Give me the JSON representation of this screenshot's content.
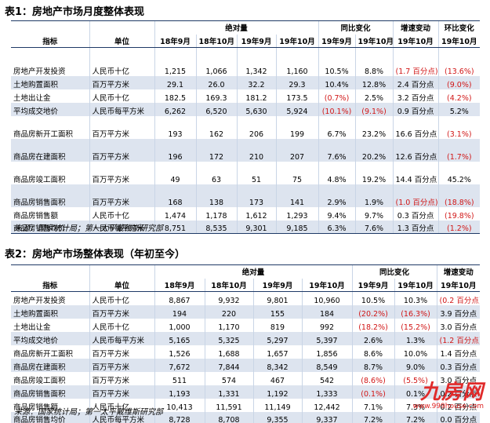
{
  "table1": {
    "title": "表1：房地产市场月度整体表现",
    "header_groups": [
      "绝对量",
      "同比变化",
      "增速变动",
      "环比变化"
    ],
    "header_cols": [
      "指标",
      "单位",
      "18年9月",
      "18年10月",
      "19年9月",
      "19年10月",
      "19年9月",
      "19年10月",
      "19年10月",
      "19年10月"
    ],
    "rows": [
      {
        "indicator": "房地产开发投资",
        "unit": "人民币十亿",
        "v1": "1,215",
        "v2": "1,066",
        "v3": "1,342",
        "v4": "1,160",
        "y1": "10.5%",
        "y2": "8.8%",
        "chg": "(1.7 百分点)",
        "mom": "(13.6%)"
      },
      {
        "indicator": "土地购置面积",
        "unit": "百万平方米",
        "v1": "29.1",
        "v2": "26.0",
        "v3": "32.2",
        "v4": "29.3",
        "y1": "10.4%",
        "y2": "12.8%",
        "chg": "2.4 百分点",
        "mom": "(9.0%)"
      },
      {
        "indicator": "土地出让金",
        "unit": "人民币十亿",
        "v1": "182.5",
        "v2": "169.3",
        "v3": "181.2",
        "v4": "173.5",
        "y1": "(0.7%)",
        "y2": "2.5%",
        "chg": "3.2 百分点",
        "mom": "(4.2%)"
      },
      {
        "indicator": "平均成交地价",
        "unit": "人民币每平方米",
        "v1": "6,262",
        "v2": "6,520",
        "v3": "5,630",
        "v4": "5,924",
        "y1": "(10.1%)",
        "y2": "(9.1%)",
        "chg": "0.9 百分点",
        "mom": "5.2%"
      },
      {
        "indicator": "商品房新开工面积",
        "unit": "百万平方米",
        "v1": "193",
        "v2": "162",
        "v3": "206",
        "v4": "199",
        "y1": "6.7%",
        "y2": "23.2%",
        "chg": "16.6 百分点",
        "mom": "(3.1%)"
      },
      {
        "indicator": "商品房在建面积",
        "unit": "百万平方米",
        "v1": "196",
        "v2": "172",
        "v3": "210",
        "v4": "207",
        "y1": "7.6%",
        "y2": "20.2%",
        "chg": "12.6 百分点",
        "mom": "(1.7%)"
      },
      {
        "indicator": "商品房竣工面积",
        "unit": "百万平方米",
        "v1": "49",
        "v2": "63",
        "v3": "51",
        "v4": "75",
        "y1": "4.8%",
        "y2": "19.2%",
        "chg": "14.4 百分点",
        "mom": "45.2%"
      },
      {
        "indicator": "商品房销售面积",
        "unit": "百万平方米",
        "v1": "168",
        "v2": "138",
        "v3": "173",
        "v4": "141",
        "y1": "2.9%",
        "y2": "1.9%",
        "chg": "(1.0 百分点)",
        "mom": "(18.8%)"
      },
      {
        "indicator": "商品房销售额",
        "unit": "人民币十亿",
        "v1": "1,474",
        "v2": "1,178",
        "v3": "1,612",
        "v4": "1,293",
        "y1": "9.4%",
        "y2": "9.7%",
        "chg": "0.3 百分点",
        "mom": "(19.8%)"
      },
      {
        "indicator": "商品房销售均价",
        "unit": "人民币每平方米",
        "v1": "8,751",
        "v2": "8,535",
        "v3": "9,301",
        "v4": "9,185",
        "y1": "6.3%",
        "y2": "7.6%",
        "chg": "1.3 百分点",
        "mom": "(1.2%)"
      }
    ],
    "source": "来源：国家统计局；第一太平戴维斯研究部"
  },
  "table2": {
    "title": "表2：房地产市场整体表现（年初至今）",
    "header_groups": [
      "绝对量",
      "同比变化",
      "增速变动"
    ],
    "header_cols": [
      "指标",
      "单位",
      "18年9月",
      "18年10月",
      "19年9月",
      "19年10月",
      "19年9月",
      "19年10月",
      "19年10月"
    ],
    "rows": [
      {
        "indicator": "房地产开发投资",
        "unit": "人民币十亿",
        "v1": "8,867",
        "v2": "9,932",
        "v3": "9,801",
        "v4": "10,960",
        "y1": "10.5%",
        "y2": "10.3%",
        "chg": "(0.2 百分点)"
      },
      {
        "indicator": "土地购置面积",
        "unit": "百万平方米",
        "v1": "194",
        "v2": "220",
        "v3": "155",
        "v4": "184",
        "y1": "(20.2%)",
        "y2": "(16.3%)",
        "chg": "3.9 百分点"
      },
      {
        "indicator": "土地出让金",
        "unit": "人民币十亿",
        "v1": "1,000",
        "v2": "1,170",
        "v3": "819",
        "v4": "992",
        "y1": "(18.2%)",
        "y2": "(15.2%)",
        "chg": "3.0 百分点"
      },
      {
        "indicator": "平均成交地价",
        "unit": "人民币每平方米",
        "v1": "5,165",
        "v2": "5,325",
        "v3": "5,297",
        "v4": "5,397",
        "y1": "2.6%",
        "y2": "1.3%",
        "chg": "(1.2 百分点)"
      },
      {
        "indicator": "商品房新开工面积",
        "unit": "百万平方米",
        "v1": "1,526",
        "v2": "1,688",
        "v3": "1,657",
        "v4": "1,856",
        "y1": "8.6%",
        "y2": "10.0%",
        "chg": "1.4 百分点"
      },
      {
        "indicator": "商品房在建面积",
        "unit": "百万平方米",
        "v1": "7,672",
        "v2": "7,844",
        "v3": "8,342",
        "v4": "8,549",
        "y1": "8.7%",
        "y2": "9.0%",
        "chg": "0.3 百分点"
      },
      {
        "indicator": "商品房竣工面积",
        "unit": "百万平方米",
        "v1": "511",
        "v2": "574",
        "v3": "467",
        "v4": "542",
        "y1": "(8.6%)",
        "y2": "(5.5%)",
        "chg": "3.0 百分点"
      },
      {
        "indicator": "商品房销售面积",
        "unit": "百万平方米",
        "v1": "1,193",
        "v2": "1,331",
        "v3": "1,192",
        "v4": "1,333",
        "y1": "(0.1%)",
        "y2": "0.1%",
        "chg": "0.2 百分点"
      },
      {
        "indicator": "商品房销售额",
        "unit": "人民币十亿",
        "v1": "10,413",
        "v2": "11,591",
        "v3": "11,149",
        "v4": "12,442",
        "y1": "7.1%",
        "y2": "7.3%",
        "chg": "0.2 百分点"
      },
      {
        "indicator": "商品房销售均价",
        "unit": "人民币每平方米",
        "v1": "8,728",
        "v2": "8,708",
        "v3": "9,355",
        "v4": "9,337",
        "y1": "7.2%",
        "y2": "7.2%",
        "chg": "0.0 百分点"
      }
    ],
    "source": "来源：国家统计局；第一太平戴维斯研究部"
  },
  "watermark": {
    "logo": "九房网",
    "url": "www.999house.com"
  },
  "colors": {
    "header_rule": "#1f3a66",
    "band_fill": "#dde4ef",
    "negative_text": "#d11717",
    "watermark": "#e02b2b"
  }
}
